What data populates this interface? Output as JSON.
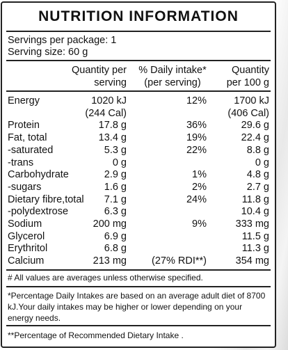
{
  "title": "NUTRITION INFORMATION",
  "servings_per_package": "Servings per package: 1",
  "serving_size": "Serving size: 60 g",
  "headers": {
    "qty_line1": "Quantity per",
    "qty_line2": "serving",
    "dv_line1": "% Daily intake*",
    "dv_line2": "(per serving)",
    "per100_line1": "Quantity",
    "per100_line2": "per 100 g"
  },
  "rows": [
    {
      "name": "Energy",
      "qty": "1020 kJ",
      "dv": "12%",
      "per100": "1700 kJ"
    },
    {
      "name": "",
      "qty": "(244 Cal)",
      "dv": "",
      "per100": "(406 Cal)"
    },
    {
      "name": "Protein",
      "qty": "17.8 g",
      "dv": "36%",
      "per100": "29.6 g"
    },
    {
      "name": "Fat, total",
      "qty": "13.4 g",
      "dv": "19%",
      "per100": "22.4 g"
    },
    {
      "name": "-saturated",
      "qty": "5.3 g",
      "dv": "22%",
      "per100": "8.8 g"
    },
    {
      "name": "-trans",
      "qty": "0 g",
      "dv": "",
      "per100": "0 g"
    },
    {
      "name": "Carbohydrate",
      "qty": "2.9 g",
      "dv": "1%",
      "per100": "4.8 g"
    },
    {
      "name": "-sugars",
      "qty": "1.6 g",
      "dv": "2%",
      "per100": "2.7 g"
    },
    {
      "name": "Dietary fibre,total",
      "qty": "7.1 g",
      "dv": "24%",
      "per100": "11.8 g"
    },
    {
      "name": "-polydextrose",
      "qty": "6.3 g",
      "dv": "",
      "per100": "10.4 g"
    },
    {
      "name": "Sodium",
      "qty": "200 mg",
      "dv": "9%",
      "per100": "333 mg"
    },
    {
      "name": "Glycerol",
      "qty": "6.9 g",
      "dv": "",
      "per100": "11.5 g"
    },
    {
      "name": "Erythritol",
      "qty": "6.8 g",
      "dv": "",
      "per100": "11.3 g"
    },
    {
      "name": "Calcium",
      "qty": "213 mg",
      "dv": "(27% RDI**)",
      "per100": "354 mg"
    }
  ],
  "footnotes": {
    "averages": "# All values are averages unless otherwise specified.",
    "daily_intake": "*Percentage Daily Intakes are based on an average adult diet of 8700 kJ.Your daily intakes may be higher or lower depending on your energy needs.",
    "rdi": "**Percentage of Recommended Dietary Intake ."
  }
}
